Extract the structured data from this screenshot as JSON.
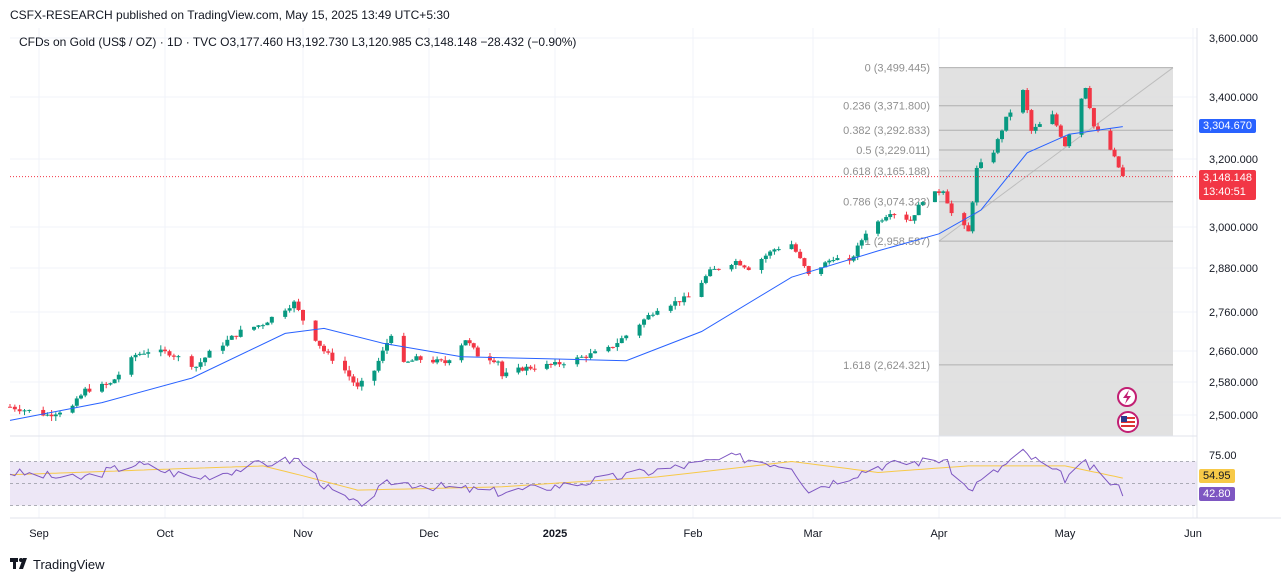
{
  "publisher": "CSFX-RESEARCH published on TradingView.com, May 15, 2025 13:49 UTC+5:30",
  "ohlc_header": "CFDs on Gold (US$ / OZ) · 1D · TVC   O3,177.460   H3,192.730   L3,120.985   C3,148.148   −28.432 (−0.90%)",
  "brand": "TradingView",
  "colors": {
    "up": "#089981",
    "down": "#f23645",
    "ma": "#2962ff",
    "price_tag": "#f23645",
    "ma_tag": "#2962ff",
    "rsi": "#7e57c2",
    "rsi_ma": "#f7c948",
    "fib_box": "#dcdcdc",
    "rsi_band": "#ede7f6"
  },
  "price_tag": {
    "value": "3,148.148",
    "timer": "13:40:51"
  },
  "ma_tag": "3,304.670",
  "rsi_tags": {
    "rsi_ma": "54.95",
    "rsi": "42.80"
  },
  "icons": [
    "lightning-icon",
    "us-flag-icon"
  ],
  "chart_data": {
    "type": "candlestick",
    "ylim": [
      2460,
      3640
    ],
    "y_ticks": [
      "3,600.000",
      "3,400.000",
      "3,200.000",
      "3,000.000",
      "2,880.000",
      "2,760.000",
      "2,660.000",
      "2,580.000",
      "2,500.000"
    ],
    "x_ticks": [
      "Sep",
      "Oct",
      "Nov",
      "Dec",
      "2025",
      "Feb",
      "Mar",
      "Apr",
      "May",
      "Jun"
    ],
    "fibonacci": [
      {
        "label": "0 (3,499.445)",
        "value": 3499.445
      },
      {
        "label": "0.236 (3,371.800)",
        "value": 3371.8
      },
      {
        "label": "0.382 (3,292.833)",
        "value": 3292.833
      },
      {
        "label": "0.5 (3,229.011)",
        "value": 3229.011
      },
      {
        "label": "0.618 (3,165.188)",
        "value": 3165.188
      },
      {
        "label": "0.786 (3,074.323)",
        "value": 3074.323
      },
      {
        "label": "1 (2,958.587)",
        "value": 2958.587
      },
      {
        "label": "1.618 (2,624.321)",
        "value": 2624.321
      }
    ],
    "series": [
      {
        "name": "",
        "kind": "close_path_daily",
        "points": [
          [
            "2024-08-26",
            2520
          ],
          [
            "2024-09-03",
            2500
          ],
          [
            "2024-09-09",
            2520
          ],
          [
            "2024-09-12",
            2560
          ],
          [
            "2024-09-18",
            2575
          ],
          [
            "2024-09-24",
            2650
          ],
          [
            "2024-09-27",
            2660
          ],
          [
            "2024-10-02",
            2655
          ],
          [
            "2024-10-08",
            2620
          ],
          [
            "2024-10-11",
            2655
          ],
          [
            "2024-10-18",
            2710
          ],
          [
            "2024-10-23",
            2730
          ],
          [
            "2024-10-30",
            2785
          ],
          [
            "2024-11-01",
            2740
          ],
          [
            "2024-11-06",
            2660
          ],
          [
            "2024-11-11",
            2610
          ],
          [
            "2024-11-14",
            2565
          ],
          [
            "2024-11-18",
            2610
          ],
          [
            "2024-11-22",
            2705
          ],
          [
            "2024-11-25",
            2625
          ],
          [
            "2024-11-28",
            2640
          ],
          [
            "2024-12-05",
            2630
          ],
          [
            "2024-12-10",
            2690
          ],
          [
            "2024-12-13",
            2650
          ],
          [
            "2024-12-18",
            2635
          ],
          [
            "2024-12-19",
            2595
          ],
          [
            "2024-12-24",
            2615
          ],
          [
            "2025-01-01",
            2625
          ],
          [
            "2025-01-06",
            2640
          ],
          [
            "2025-01-13",
            2665
          ],
          [
            "2025-01-17",
            2700
          ],
          [
            "2025-01-24",
            2770
          ],
          [
            "2025-01-31",
            2800
          ],
          [
            "2025-02-05",
            2870
          ],
          [
            "2025-02-11",
            2900
          ],
          [
            "2025-02-14",
            2880
          ],
          [
            "2025-02-20",
            2935
          ],
          [
            "2025-02-24",
            2950
          ],
          [
            "2025-02-28",
            2860
          ],
          [
            "2025-03-06",
            2910
          ],
          [
            "2025-03-10",
            2895
          ],
          [
            "2025-03-14",
            2985
          ],
          [
            "2025-03-20",
            3045
          ],
          [
            "2025-03-25",
            3020
          ],
          [
            "2025-03-28",
            3080
          ],
          [
            "2025-04-02",
            3110
          ],
          [
            "2025-04-04",
            3040
          ],
          [
            "2025-04-08",
            2985
          ],
          [
            "2025-04-10",
            3170
          ],
          [
            "2025-04-14",
            3225
          ],
          [
            "2025-04-17",
            3330
          ],
          [
            "2025-04-21",
            3420
          ],
          [
            "2025-04-23",
            3290
          ],
          [
            "2025-04-28",
            3340
          ],
          [
            "2025-05-01",
            3245
          ],
          [
            "2025-05-06",
            3435
          ],
          [
            "2025-05-08",
            3305
          ],
          [
            "2025-05-12",
            3230
          ],
          [
            "2025-05-15",
            3148.148
          ]
        ]
      },
      {
        "name": "",
        "kind": "moving_average",
        "points": [
          [
            "2024-08-26",
            2487
          ],
          [
            "2024-09-16",
            2530
          ],
          [
            "2024-10-07",
            2590
          ],
          [
            "2024-10-28",
            2705
          ],
          [
            "2024-11-06",
            2718
          ],
          [
            "2024-11-20",
            2680
          ],
          [
            "2024-12-09",
            2645
          ],
          [
            "2024-12-30",
            2640
          ],
          [
            "2025-01-17",
            2635
          ],
          [
            "2025-02-03",
            2710
          ],
          [
            "2025-02-24",
            2855
          ],
          [
            "2025-03-17",
            2930
          ],
          [
            "2025-04-01",
            2980
          ],
          [
            "2025-04-11",
            3050
          ],
          [
            "2025-04-22",
            3220
          ],
          [
            "2025-05-02",
            3280
          ],
          [
            "2025-05-15",
            3304.67
          ]
        ]
      }
    ],
    "rsi": {
      "levels": [
        70,
        50,
        30
      ],
      "axis_label": "75.00",
      "rsi_path": [
        [
          "2024-08-26",
          60
        ],
        [
          "2024-09-10",
          54
        ],
        [
          "2024-09-24",
          68
        ],
        [
          "2024-10-08",
          55
        ],
        [
          "2024-10-23",
          68
        ],
        [
          "2024-10-31",
          72
        ],
        [
          "2024-11-07",
          45
        ],
        [
          "2024-11-14",
          30
        ],
        [
          "2024-11-22",
          52
        ],
        [
          "2024-12-06",
          46
        ],
        [
          "2024-12-19",
          42
        ],
        [
          "2025-01-06",
          50
        ],
        [
          "2025-01-24",
          62
        ],
        [
          "2025-02-11",
          74
        ],
        [
          "2025-02-24",
          66
        ],
        [
          "2025-02-28",
          44
        ],
        [
          "2025-03-17",
          66
        ],
        [
          "2025-04-02",
          72
        ],
        [
          "2025-04-08",
          44
        ],
        [
          "2025-04-21",
          78
        ],
        [
          "2025-05-01",
          55
        ],
        [
          "2025-05-06",
          68
        ],
        [
          "2025-05-15",
          42.8
        ]
      ],
      "rsi_ma_path": [
        [
          "2024-08-26",
          58
        ],
        [
          "2024-09-24",
          62
        ],
        [
          "2024-10-23",
          66
        ],
        [
          "2024-11-14",
          44
        ],
        [
          "2024-12-19",
          47
        ],
        [
          "2025-01-24",
          56
        ],
        [
          "2025-02-24",
          70
        ],
        [
          "2025-03-17",
          60
        ],
        [
          "2025-04-08",
          66
        ],
        [
          "2025-05-01",
          66
        ],
        [
          "2025-05-15",
          54.95
        ]
      ]
    }
  }
}
